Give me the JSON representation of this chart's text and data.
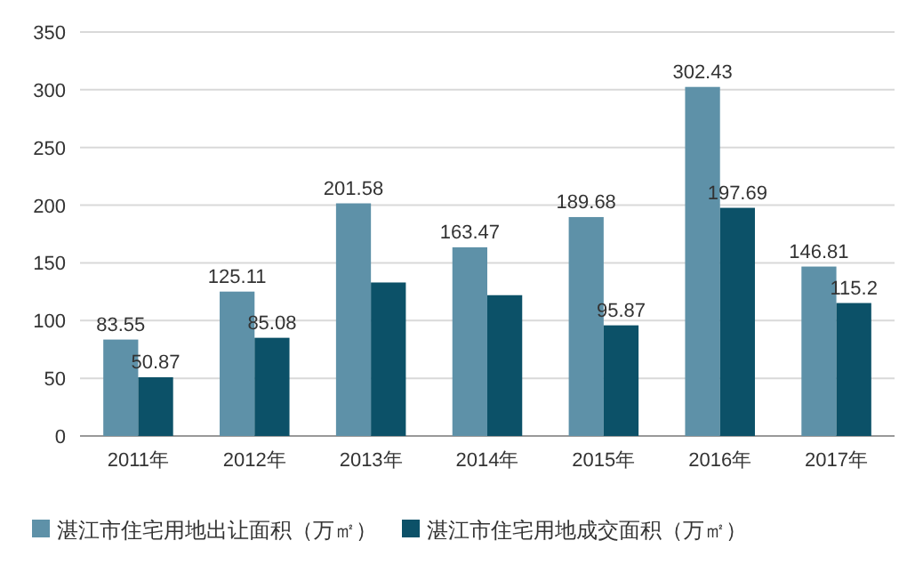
{
  "chart_data": {
    "type": "bar",
    "categories": [
      "2011年",
      "2012年",
      "2013年",
      "2014年",
      "2015年",
      "2016年",
      "2017年"
    ],
    "series": [
      {
        "name": "湛江市住宅用地出让面积（万㎡）",
        "color": "#5e91a8",
        "values": [
          83.55,
          125.11,
          201.58,
          163.47,
          189.68,
          302.43,
          146.81
        ],
        "value_labels": [
          "83.55",
          "125.11",
          "201.58",
          "163.47",
          "189.68",
          "302.43",
          "146.81"
        ]
      },
      {
        "name": "湛江市住宅用地成交面积（万㎡）",
        "color": "#0c5168",
        "values": [
          50.87,
          85.08,
          133,
          122,
          95.87,
          197.69,
          115.2
        ],
        "value_labels": [
          "50.87",
          "85.08",
          null,
          null,
          "95.87",
          "197.69",
          "115.2"
        ]
      }
    ],
    "ylim": [
      0,
      350
    ],
    "yticks": [
      0,
      50,
      100,
      150,
      200,
      250,
      300,
      350
    ],
    "grid": "y",
    "legend": "bottom"
  }
}
